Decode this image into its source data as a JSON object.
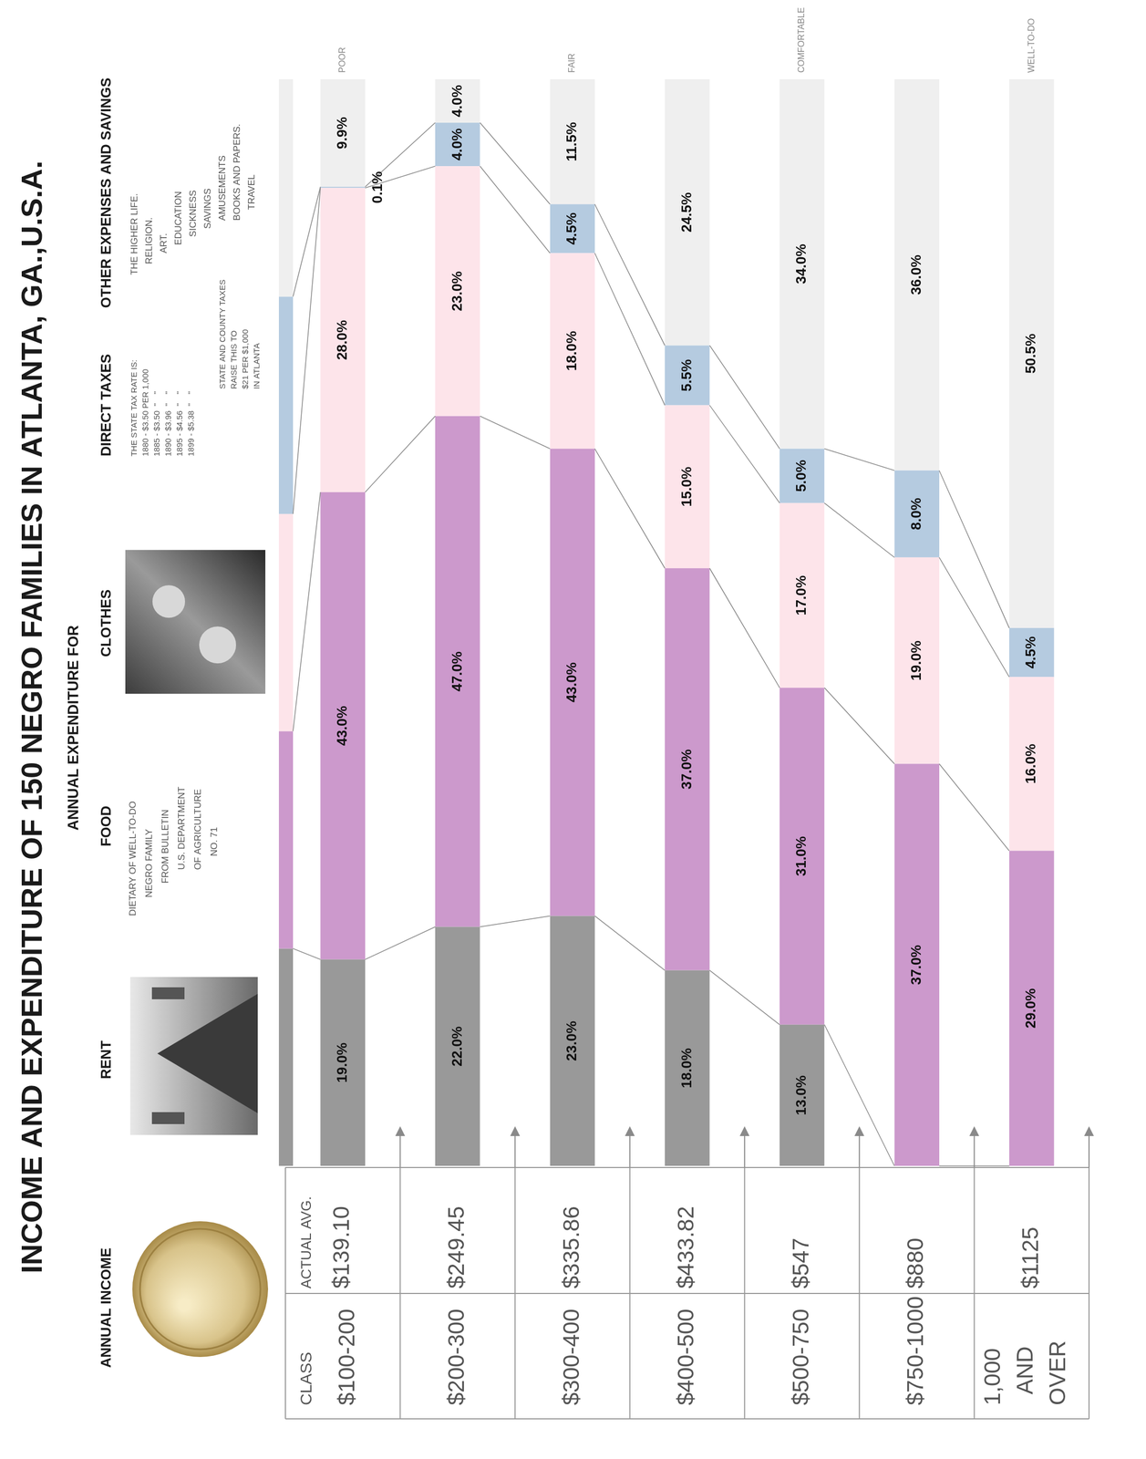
{
  "chart_data": {
    "type": "bar",
    "orientation": "horizontal",
    "stacked": true,
    "data_labels": true,
    "title": "INCOME AND EXPENDITURE OF 150 NEGRO FAMILIES IN ATLANTA, GA.,U.S.A.",
    "subtitle": "ANNUAL EXPENDITURE FOR",
    "income_header": "ANNUAL INCOME",
    "class_header": "CLASS",
    "average_header": "ACTUAL AVG.",
    "categories": [
      "$100-200",
      "$200-300",
      "$300-400",
      "$400-500",
      "$500-750",
      "$750-1000",
      "1,000 AND OVER"
    ],
    "averages": [
      "$139.10",
      "$249.45",
      "$335.86",
      "$433.82",
      "$547",
      "$880",
      "$1125"
    ],
    "xlim": [
      0,
      100
    ],
    "series": [
      {
        "name": "RENT",
        "color": "#999999",
        "values": [
          19,
          22,
          23,
          18,
          13,
          null,
          null
        ],
        "value_labels": [
          "19.0%",
          "22.0%",
          "23.0%",
          "18.0%",
          "13.0%",
          null,
          null
        ]
      },
      {
        "name": "FOOD",
        "color": "#cc99cc",
        "values": [
          43,
          47,
          43,
          37,
          31,
          37,
          29
        ],
        "value_labels": [
          "43.0%",
          "47.0%",
          "43.0%",
          "37.0%",
          "31.0%",
          "37.0%",
          "29.0%"
        ],
        "description": [
          [
            "DIETARY OF WELL-TO-DO",
            "NEGRO FAMILY",
            "FROM BULLETIN",
            "U.S. DEPARTMENT",
            "OF AGRICULTURE",
            "NO. 71"
          ]
        ]
      },
      {
        "name": "CLOTHES",
        "color": "#fde4ea",
        "values": [
          28,
          23,
          18,
          15,
          17,
          19,
          16
        ],
        "value_labels": [
          "28.0%",
          "23.0%",
          "18.0%",
          "15.0%",
          "17.0%",
          "19.0%",
          "16.0%"
        ]
      },
      {
        "name": "DIRECT TAXES",
        "color": "#b5cbe0",
        "values": [
          0.1,
          4,
          4.5,
          5.5,
          5,
          8,
          4.5
        ],
        "value_labels": [
          "0.1%",
          "4.0%",
          "4.5%",
          "5.5%",
          "5.0%",
          "8.0%",
          "4.5%"
        ],
        "description": [
          [
            "THE STATE TAX RATE IS:",
            "1880 - $3.50 PER 1,000",
            "1885 - $3.50  \"    \"",
            "1890 - $3.96  \"    \"",
            "1895 - $4.56  \"    \"",
            "1899 - $5.38  \"    \""
          ],
          [
            "STATE AND COUNTY TAXES",
            "RAISE THIS TO",
            "$21 PER $1,000",
            "IN ATLANTA"
          ]
        ]
      },
      {
        "name": "OTHER EXPENSES AND SAVINGS",
        "color": "#efefef",
        "values": [
          9.9,
          4,
          11.5,
          24.5,
          34,
          36,
          50.5
        ],
        "value_labels": [
          "9.9%",
          "4.0%",
          "11.5%",
          "24.5%",
          "34.0%",
          "36.0%",
          "50.5%"
        ],
        "description": [
          [
            "THE HIGHER LIFE.",
            "RELIGION.",
            "ART.",
            "EDUCATION",
            "SICKNESS",
            "SAVINGS",
            "AMUSEMENTS",
            "BOOKS AND PAPERS.",
            "TRAVEL"
          ]
        ]
      }
    ],
    "annotations": [
      {
        "category": "$100-200",
        "text": "POOR"
      },
      {
        "category": "$300-400",
        "text": "FAIR"
      },
      {
        "category": "$500-750",
        "text": "COMFORTABLE"
      },
      {
        "category": "1,000 AND OVER",
        "text": "WELL-TO-DO"
      }
    ]
  }
}
